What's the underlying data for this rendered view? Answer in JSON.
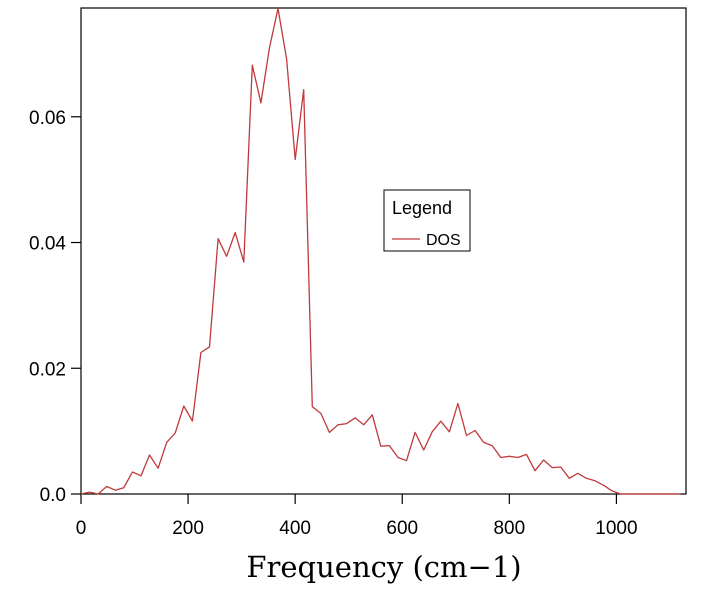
{
  "chart_data": {
    "type": "line",
    "title": "",
    "xlabel": "Frequency (cm−1)",
    "ylabel": "",
    "xlim": [
      0,
      1130
    ],
    "ylim": [
      0,
      0.0773
    ],
    "x_ticks": [
      0,
      200,
      400,
      600,
      800,
      1000
    ],
    "x_tick_labels": [
      "0",
      "200",
      "400",
      "600",
      "800",
      "1000"
    ],
    "y_ticks": [
      0,
      0.02,
      0.04,
      0.06
    ],
    "y_tick_labels": [
      "0.0",
      "0.02",
      "0.04",
      "0.06"
    ],
    "grid": false,
    "line_color": "#c0393b",
    "legend": {
      "title": "Legend",
      "entries": [
        {
          "label": "DOS",
          "color": "#c0393b"
        }
      ],
      "placement": "center-right"
    },
    "series": [
      {
        "name": "DOS",
        "x": [
          0,
          16,
          32,
          48,
          64,
          80,
          96,
          112,
          128,
          144,
          160,
          176,
          192,
          208,
          224,
          240,
          256,
          272,
          288,
          304,
          320,
          336,
          352,
          368,
          384,
          400,
          416,
          432,
          448,
          464,
          480,
          496,
          512,
          528,
          544,
          560,
          576,
          592,
          608,
          624,
          640,
          656,
          672,
          688,
          704,
          720,
          736,
          752,
          768,
          784,
          800,
          816,
          832,
          848,
          864,
          880,
          896,
          912,
          928,
          944,
          960,
          976,
          992,
          1008,
          1024,
          1040,
          1056,
          1072,
          1088,
          1104,
          1120
        ],
        "y": [
          0.0,
          0.0003,
          0.0,
          0.0012,
          0.0006,
          0.001,
          0.0035,
          0.0029,
          0.0062,
          0.0041,
          0.0082,
          0.0097,
          0.014,
          0.0116,
          0.0225,
          0.0234,
          0.0406,
          0.0378,
          0.0416,
          0.0369,
          0.0682,
          0.0622,
          0.071,
          0.0772,
          0.0692,
          0.0532,
          0.0643,
          0.0139,
          0.0128,
          0.0098,
          0.011,
          0.0112,
          0.0121,
          0.011,
          0.0126,
          0.0076,
          0.0077,
          0.0058,
          0.0053,
          0.0098,
          0.007,
          0.0099,
          0.0116,
          0.0099,
          0.0144,
          0.0093,
          0.0101,
          0.0082,
          0.0077,
          0.0058,
          0.006,
          0.0058,
          0.0063,
          0.0037,
          0.0054,
          0.0042,
          0.0043,
          0.0025,
          0.0033,
          0.0025,
          0.0021,
          0.0014,
          0.0005,
          0.0,
          0.0,
          0.0,
          0.0,
          0.0,
          0.0,
          0.0,
          0.0
        ]
      }
    ]
  }
}
